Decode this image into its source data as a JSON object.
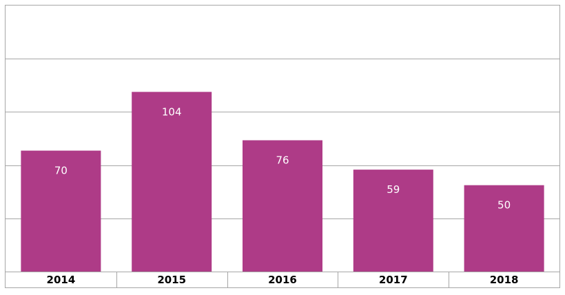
{
  "chart_data": {
    "type": "bar",
    "categories": [
      "2014",
      "2015",
      "2016",
      "2017",
      "2018"
    ],
    "values": [
      70,
      104,
      76,
      59,
      50
    ],
    "title": "",
    "xlabel": "",
    "ylabel": "",
    "ylim": [
      0,
      154
    ],
    "grid": true,
    "legend": "none",
    "bar_color": "#ae3b87"
  }
}
